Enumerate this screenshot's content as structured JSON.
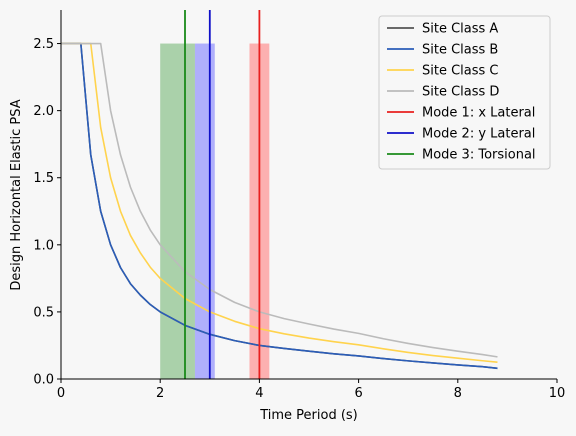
{
  "chart_data": {
    "type": "line",
    "title": "",
    "xlabel": "Time Period (s)",
    "ylabel": "Design Horizontal Elastic PSA",
    "xlim": [
      0,
      10
    ],
    "ylim": [
      0,
      2.75
    ],
    "xticks": [
      0,
      2,
      4,
      6,
      8,
      10
    ],
    "xtick_labels": [
      "0",
      "2",
      "4",
      "6",
      "8",
      "10"
    ],
    "yticks": [
      0,
      0.5,
      1.0,
      1.5,
      2.0,
      2.5
    ],
    "ytick_labels": [
      "0.0",
      "0.5",
      "1.0",
      "1.5",
      "2.0",
      "2.5"
    ],
    "grid": false,
    "legend_position": "top-right",
    "series": [
      {
        "name": "Site Class A",
        "color": "#555555",
        "x": [
          0,
          0.4,
          0.6,
          0.8,
          1.0,
          1.2,
          1.4,
          1.6,
          1.8,
          2.0,
          2.5,
          3.0,
          3.5,
          4.0,
          4.5,
          5.0,
          5.5,
          6.0,
          6.5,
          7.0,
          7.5,
          8.0,
          8.5,
          8.8
        ],
        "y": [
          2.5,
          2.5,
          1.67,
          1.25,
          1.0,
          0.83,
          0.71,
          0.625,
          0.555,
          0.5,
          0.4,
          0.333,
          0.286,
          0.25,
          0.228,
          0.207,
          0.188,
          0.172,
          0.152,
          0.135,
          0.12,
          0.105,
          0.092,
          0.08
        ]
      },
      {
        "name": "Site Class B",
        "color": "#2b5db8",
        "x": [
          0,
          0.4,
          0.6,
          0.8,
          1.0,
          1.2,
          1.4,
          1.6,
          1.8,
          2.0,
          2.5,
          3.0,
          3.5,
          4.0,
          4.5,
          5.0,
          5.5,
          6.0,
          6.5,
          7.0,
          7.5,
          8.0,
          8.5,
          8.8
        ],
        "y": [
          2.5,
          2.5,
          1.67,
          1.25,
          1.0,
          0.83,
          0.71,
          0.625,
          0.555,
          0.5,
          0.4,
          0.333,
          0.286,
          0.25,
          0.228,
          0.207,
          0.188,
          0.172,
          0.152,
          0.135,
          0.12,
          0.105,
          0.092,
          0.08
        ]
      },
      {
        "name": "Site Class C",
        "color": "#ffd34d",
        "x": [
          0,
          0.6,
          0.8,
          1.0,
          1.2,
          1.4,
          1.6,
          1.8,
          2.0,
          2.5,
          3.0,
          3.5,
          4.0,
          4.5,
          5.0,
          5.5,
          6.0,
          6.5,
          7.0,
          7.5,
          8.0,
          8.5,
          8.8
        ],
        "y": [
          2.5,
          2.5,
          1.875,
          1.5,
          1.25,
          1.07,
          0.94,
          0.833,
          0.75,
          0.6,
          0.5,
          0.43,
          0.375,
          0.337,
          0.305,
          0.278,
          0.255,
          0.225,
          0.198,
          0.175,
          0.155,
          0.136,
          0.125
        ]
      },
      {
        "name": "Site Class D",
        "color": "#bbbbbb",
        "x": [
          0,
          0.8,
          1.0,
          1.2,
          1.4,
          1.6,
          1.8,
          2.0,
          2.5,
          3.0,
          3.5,
          4.0,
          4.5,
          5.0,
          5.5,
          6.0,
          6.5,
          7.0,
          7.5,
          8.0,
          8.5,
          8.8
        ],
        "y": [
          2.5,
          2.5,
          2.0,
          1.67,
          1.43,
          1.25,
          1.11,
          1.0,
          0.8,
          0.667,
          0.571,
          0.5,
          0.45,
          0.41,
          0.372,
          0.34,
          0.3,
          0.265,
          0.234,
          0.207,
          0.182,
          0.165
        ]
      }
    ],
    "modes": [
      {
        "name": "Mode 1: x Lateral",
        "color": "#e8201f",
        "x": 4.0,
        "band": [
          3.8,
          4.2
        ],
        "band_top": 2.5,
        "band_color": "#ff8080"
      },
      {
        "name": "Mode 2: y Lateral",
        "color": "#1010c8",
        "x": 3.0,
        "band": [
          2.7,
          3.1
        ],
        "band_top": 2.5,
        "band_color": "#7f7fff"
      },
      {
        "name": "Mode 3: Torsional",
        "color": "#1a8a1a",
        "x": 2.5,
        "band": [
          2.0,
          2.7
        ],
        "band_top": 2.5,
        "band_color": "#77b877"
      }
    ]
  }
}
